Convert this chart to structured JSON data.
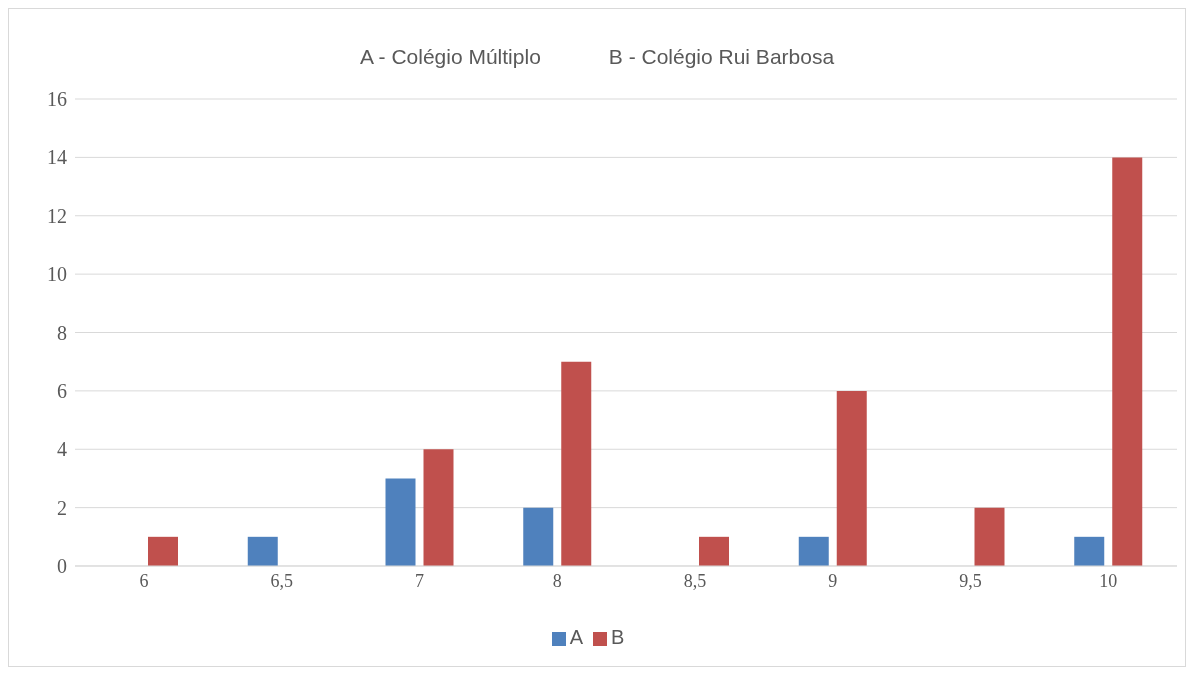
{
  "chart_data": {
    "type": "bar",
    "annotations": [
      "A - Colégio Múltiplo",
      "B - Colégio Rui Barbosa"
    ],
    "categories": [
      "6",
      "6,5",
      "7",
      "8",
      "8,5",
      "9",
      "9,5",
      "10"
    ],
    "series": [
      {
        "name": "A",
        "color": "#4f81bd",
        "values": [
          0,
          1,
          3,
          2,
          0,
          1,
          0,
          1
        ]
      },
      {
        "name": "B",
        "color": "#c0504d",
        "values": [
          1,
          0,
          4,
          7,
          1,
          6,
          2,
          14
        ]
      }
    ],
    "ylim": [
      0,
      16
    ],
    "yticks": [
      0,
      2,
      4,
      6,
      8,
      10,
      12,
      14,
      16
    ],
    "grid": "y",
    "legend": "bottom"
  }
}
